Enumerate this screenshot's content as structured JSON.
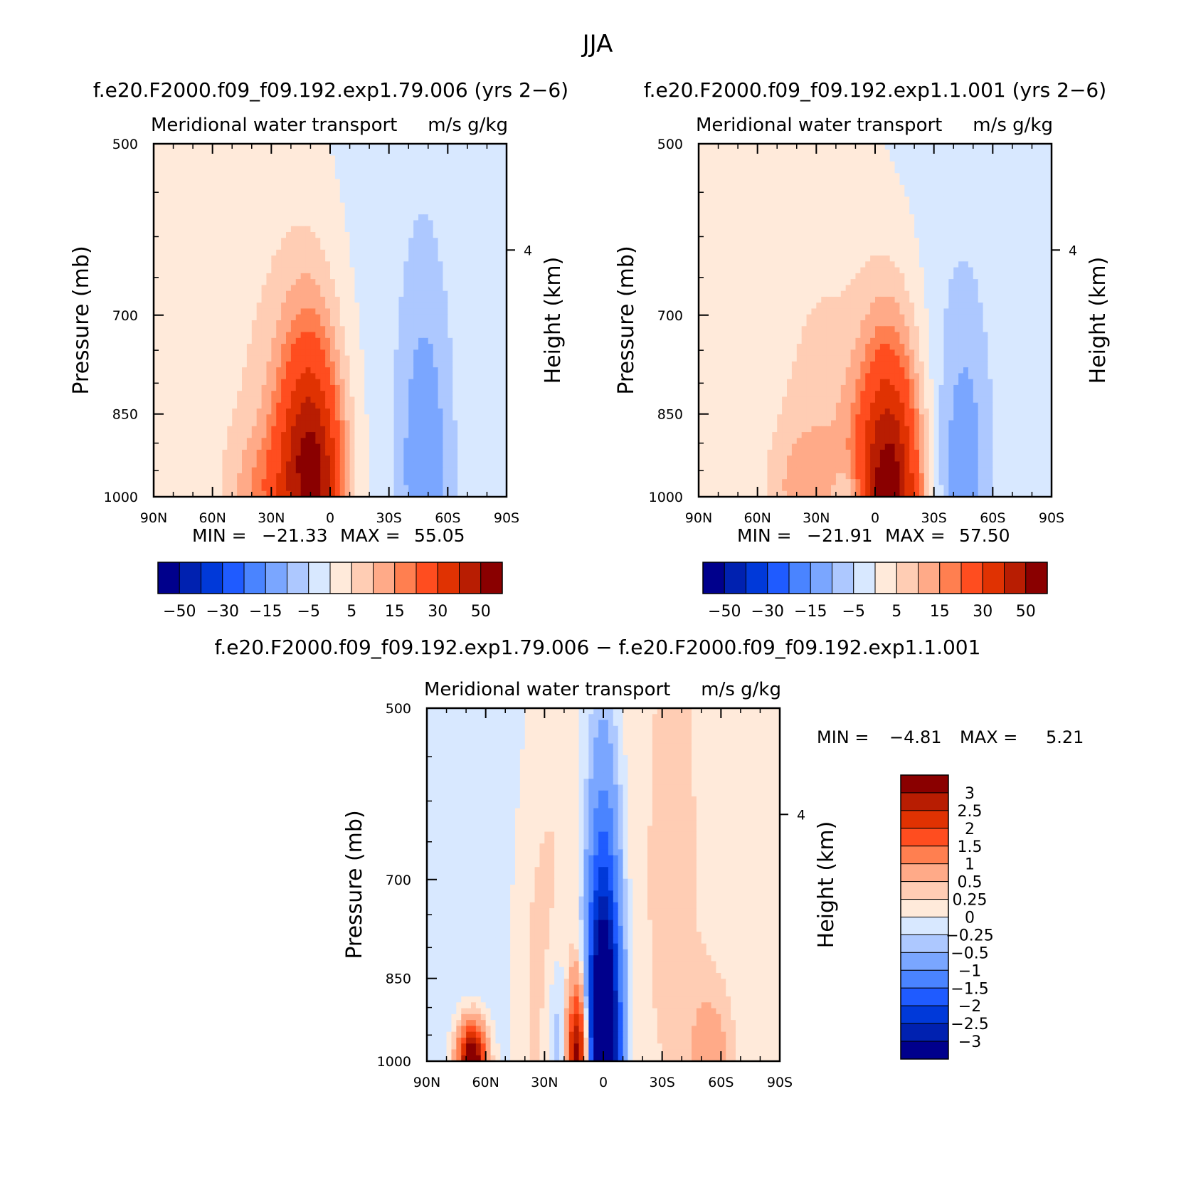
{
  "figure": {
    "title": "JJA",
    "difference_title": "f.e20.F2000.f09_f09.192.exp1.79.006 − f.e20.F2000.f09_f09.192.exp1.1.001"
  },
  "chart_data": [
    {
      "type": "heatmap",
      "title": "f.e20.F2000.f09_f09.192.exp1.79.006 (yrs 2−6)",
      "subtitle_left": "Meridional water transport",
      "subtitle_right": "m/s g/kg",
      "ylabel": "Pressure (mb)",
      "ylabel_right": "Height (km)",
      "x_ticks": [
        "90N",
        "60N",
        "30N",
        "0",
        "30S",
        "60S",
        "90S"
      ],
      "x_range": [
        90,
        -90
      ],
      "y_ticks": [
        500,
        700,
        850,
        1000
      ],
      "y_range": [
        500,
        1000
      ],
      "y_scale": "log",
      "y_right_ticks": [
        "4"
      ],
      "min_label": "MIN =",
      "min": "−21.33",
      "max_label": "MAX =",
      "max": "55.05",
      "levels": [
        "−50",
        "−30",
        "−15",
        "−5",
        "5",
        "15",
        "30",
        "50"
      ],
      "colorbar_orientation": "horizontal",
      "fields": [
        {
          "lat": 10,
          "p": 990,
          "value": 55,
          "spread_lat": 11,
          "spread_p": 170
        },
        {
          "lat": 60,
          "p": 950,
          "value": 3,
          "spread_lat": 35,
          "spread_p": 400
        },
        {
          "lat": 22,
          "p": 900,
          "value": 8,
          "spread_lat": 18,
          "spread_p": 230
        },
        {
          "lat": 37,
          "p": 980,
          "value": 8,
          "spread_lat": 10,
          "spread_p": 70
        },
        {
          "lat": 12,
          "p": 1000,
          "value": -9,
          "spread_lat": 6,
          "spread_p": 40
        },
        {
          "lat": -48,
          "p": 940,
          "value": -13,
          "spread_lat": 10,
          "spread_p": 220
        },
        {
          "lat": -20,
          "p": 700,
          "value": -2,
          "spread_lat": 60,
          "spread_p": 600
        }
      ]
    },
    {
      "type": "heatmap",
      "title": "f.e20.F2000.f09_f09.192.exp1.1.001 (yrs 2−6)",
      "subtitle_left": "Meridional water transport",
      "subtitle_right": "m/s g/kg",
      "ylabel": "Pressure (mb)",
      "ylabel_right": "Height (km)",
      "x_ticks": [
        "90N",
        "60N",
        "30N",
        "0",
        "30S",
        "60S",
        "90S"
      ],
      "x_range": [
        90,
        -90
      ],
      "y_ticks": [
        500,
        700,
        850,
        1000
      ],
      "y_range": [
        500,
        1000
      ],
      "y_scale": "log",
      "y_right_ticks": [
        "4"
      ],
      "min_label": "MIN =",
      "min": "−21.91",
      "max_label": "MAX =",
      "max": "57.50",
      "levels": [
        "−50",
        "−30",
        "−15",
        "−5",
        "5",
        "15",
        "30",
        "50"
      ],
      "colorbar_orientation": "horizontal",
      "fields": [
        {
          "lat": -7,
          "p": 990,
          "value": 57,
          "spread_lat": 11,
          "spread_p": 170
        },
        {
          "lat": 60,
          "p": 950,
          "value": 3,
          "spread_lat": 35,
          "spread_p": 400
        },
        {
          "lat": 22,
          "p": 900,
          "value": 8,
          "spread_lat": 18,
          "spread_p": 230
        },
        {
          "lat": 37,
          "p": 980,
          "value": 8,
          "spread_lat": 10,
          "spread_p": 70
        },
        {
          "lat": 12,
          "p": 1000,
          "value": -9,
          "spread_lat": 6,
          "spread_p": 40
        },
        {
          "lat": -45,
          "p": 950,
          "value": -12,
          "spread_lat": 10,
          "spread_p": 200
        },
        {
          "lat": -20,
          "p": 700,
          "value": -2,
          "spread_lat": 60,
          "spread_p": 600
        }
      ]
    },
    {
      "type": "heatmap",
      "title": "",
      "subtitle_left": "Meridional water transport",
      "subtitle_right": "m/s g/kg",
      "ylabel": "Pressure (mb)",
      "ylabel_right": "Height (km)",
      "x_ticks": [
        "90N",
        "60N",
        "30N",
        "0",
        "30S",
        "60S",
        "90S"
      ],
      "x_range": [
        90,
        -90
      ],
      "y_ticks": [
        500,
        700,
        850,
        1000
      ],
      "y_range": [
        500,
        1000
      ],
      "y_scale": "log",
      "y_right_ticks": [
        "4"
      ],
      "min_label": "MIN =",
      "min": "−4.81",
      "max_label": "MAX =",
      "max": "5.21",
      "levels": [
        "3",
        "2.5",
        "2",
        "1.5",
        "1",
        "0.5",
        "0.25",
        "0",
        "−0.25",
        "−0.5",
        "−1",
        "−1.5",
        "−2",
        "−2.5",
        "−3"
      ],
      "colorbar_orientation": "vertical",
      "fields": [
        {
          "lat": 0,
          "p": 970,
          "value": -5,
          "spread_lat": 6,
          "spread_p": 220
        },
        {
          "lat": 13,
          "p": 990,
          "value": 3.5,
          "spread_lat": 4,
          "spread_p": 90
        },
        {
          "lat": 67,
          "p": 1000,
          "value": 4,
          "spread_lat": 5,
          "spread_p": 50
        },
        {
          "lat": 30,
          "p": 850,
          "value": 0.6,
          "spread_lat": 15,
          "spread_p": 300
        },
        {
          "lat": -35,
          "p": 700,
          "value": 0.3,
          "spread_lat": 20,
          "spread_p": 500
        },
        {
          "lat": 50,
          "p": 700,
          "value": -0.3,
          "spread_lat": 25,
          "spread_p": 500
        },
        {
          "lat": -55,
          "p": 980,
          "value": 0.6,
          "spread_lat": 8,
          "spread_p": 80
        },
        {
          "lat": 22,
          "p": 960,
          "value": -0.8,
          "spread_lat": 5,
          "spread_p": 120
        }
      ]
    }
  ],
  "colors": {
    "horizontal_colorbar": [
      "#00008c",
      "#0021b0",
      "#0039d9",
      "#1f5bff",
      "#4a84ff",
      "#7aa6ff",
      "#adc8ff",
      "#d8e8ff",
      "#ffeada",
      "#ffcdb4",
      "#ffaa88",
      "#ff7f50",
      "#ff4d1f",
      "#e03202",
      "#b81d02",
      "#8a0000"
    ],
    "vertical_colorbar": [
      "#8a0000",
      "#b81d02",
      "#e03202",
      "#ff4d1f",
      "#ff7f50",
      "#ffaa88",
      "#ffcdb4",
      "#ffeada",
      "#d8e8ff",
      "#adc8ff",
      "#7aa6ff",
      "#4a84ff",
      "#1f5bff",
      "#0039d9",
      "#0021b0",
      "#00008c"
    ]
  }
}
